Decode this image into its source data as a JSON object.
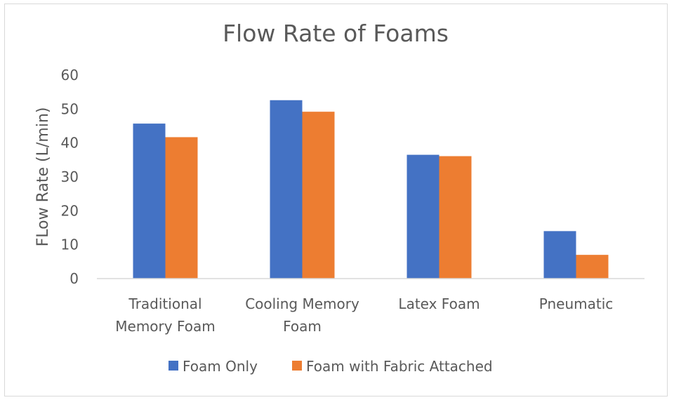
{
  "chart_data": {
    "type": "bar",
    "title": "Flow Rate of Foams",
    "xlabel": "",
    "ylabel": "FLow Rate (L/min)",
    "ylim": [
      0,
      60
    ],
    "yticks": [
      0,
      10,
      20,
      30,
      40,
      50,
      60
    ],
    "grid": false,
    "legend": "bottom",
    "categories": [
      [
        "Traditional",
        "Memory Foam"
      ],
      [
        "Cooling Memory",
        "Foam"
      ],
      [
        "Latex Foam"
      ],
      [
        "Pneumatic"
      ]
    ],
    "series": [
      {
        "name": "Foam Only",
        "color": "#4472c4",
        "values": [
          45.7,
          52.6,
          36.5,
          14
        ]
      },
      {
        "name": "Foam with Fabric Attached",
        "color": "#ed7d31",
        "values": [
          41.7,
          49.2,
          36.1,
          7
        ]
      }
    ],
    "axis_color": "#d9d9d9",
    "text_color": "#595959"
  }
}
